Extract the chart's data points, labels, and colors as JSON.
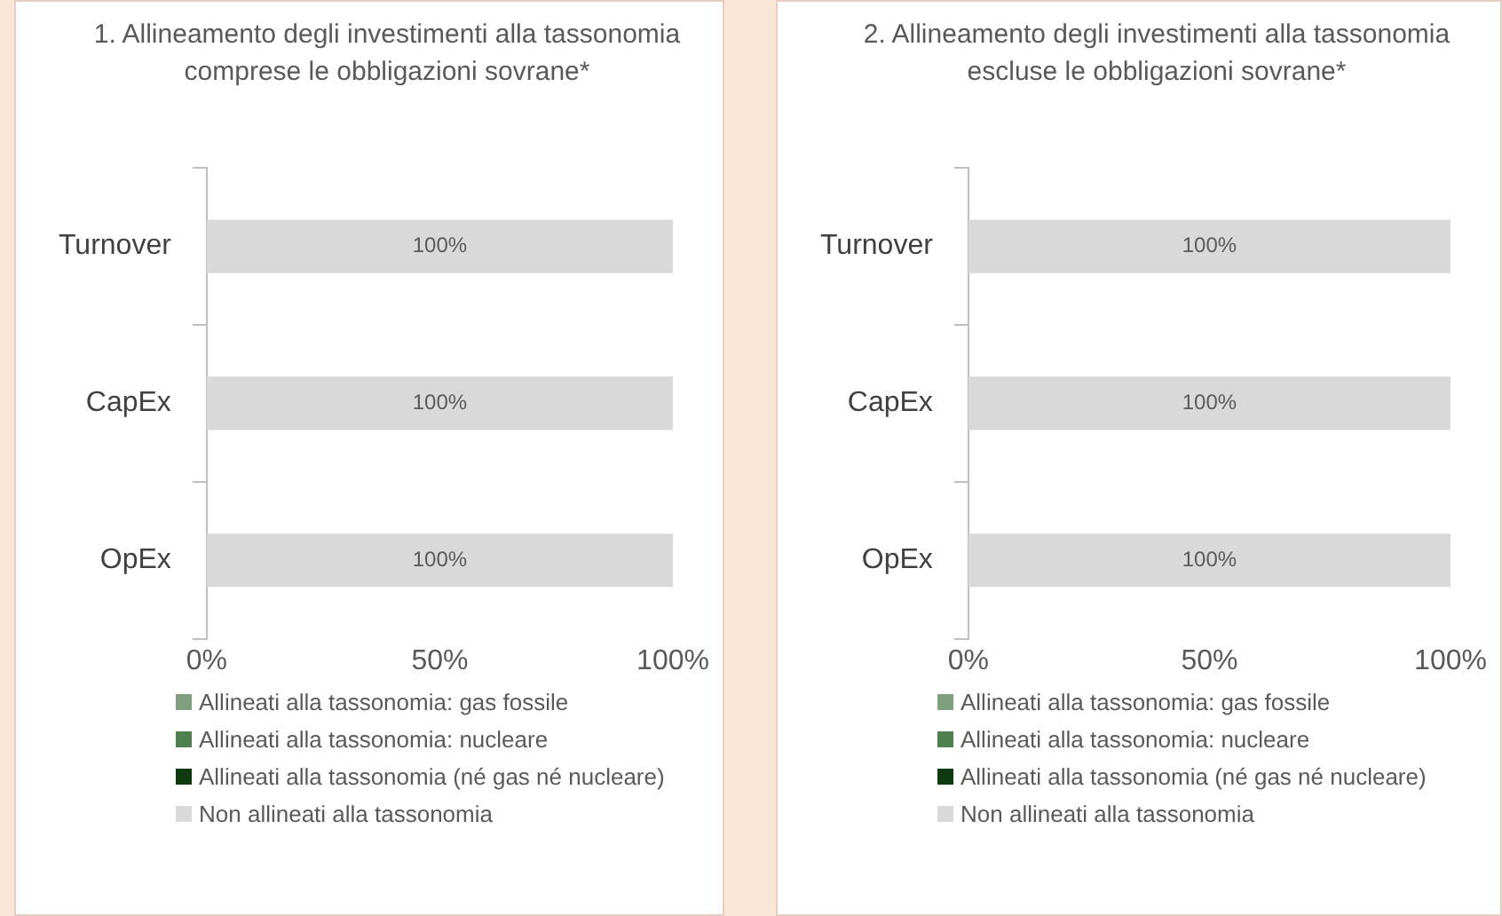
{
  "chart_data": [
    {
      "type": "bar",
      "orientation": "horizontal",
      "stacked": true,
      "title": "1. Allineamento degli investimenti alla tassonomia comprese le obbligazioni sovrane*",
      "categories": [
        "Turnover",
        "CapEx",
        "OpEx"
      ],
      "xlim": [
        0,
        100
      ],
      "xticks": [
        {
          "value": 0,
          "label": "0%"
        },
        {
          "value": 50,
          "label": "50%"
        },
        {
          "value": 100,
          "label": "100%"
        }
      ],
      "legend": "bottom",
      "series": [
        {
          "name": "Allineati alla tassonomia: gas fossile",
          "color": "#7f9f7f",
          "values": [
            0,
            0,
            0
          ]
        },
        {
          "name": "Allineati alla tassonomia: nucleare",
          "color": "#4e7f4e",
          "values": [
            0,
            0,
            0
          ]
        },
        {
          "name": "Allineati alla tassonomia (né gas né nucleare)",
          "color": "#0f3a0f",
          "values": [
            0,
            0,
            0
          ]
        },
        {
          "name": "Non allineati alla tassonomia",
          "color": "#d9d9d9",
          "values": [
            100,
            100,
            100
          ],
          "value_labels": [
            "100%",
            "100%",
            "100%"
          ]
        }
      ]
    },
    {
      "type": "bar",
      "orientation": "horizontal",
      "stacked": true,
      "title": "2. Allineamento degli investimenti alla tassonomia escluse le obbligazioni sovrane*",
      "categories": [
        "Turnover",
        "CapEx",
        "OpEx"
      ],
      "xlim": [
        0,
        100
      ],
      "xticks": [
        {
          "value": 0,
          "label": "0%"
        },
        {
          "value": 50,
          "label": "50%"
        },
        {
          "value": 100,
          "label": "100%"
        }
      ],
      "legend": "bottom",
      "series": [
        {
          "name": "Allineati alla tassonomia: gas fossile",
          "color": "#7f9f7f",
          "values": [
            0,
            0,
            0
          ]
        },
        {
          "name": "Allineati alla tassonomia: nucleare",
          "color": "#4e7f4e",
          "values": [
            0,
            0,
            0
          ]
        },
        {
          "name": "Allineati alla tassonomia (né gas né nucleare)",
          "color": "#0f3a0f",
          "values": [
            0,
            0,
            0
          ]
        },
        {
          "name": "Non allineati alla tassonomia",
          "color": "#d9d9d9",
          "values": [
            100,
            100,
            100
          ],
          "value_labels": [
            "100%",
            "100%",
            "100%"
          ]
        }
      ]
    }
  ]
}
